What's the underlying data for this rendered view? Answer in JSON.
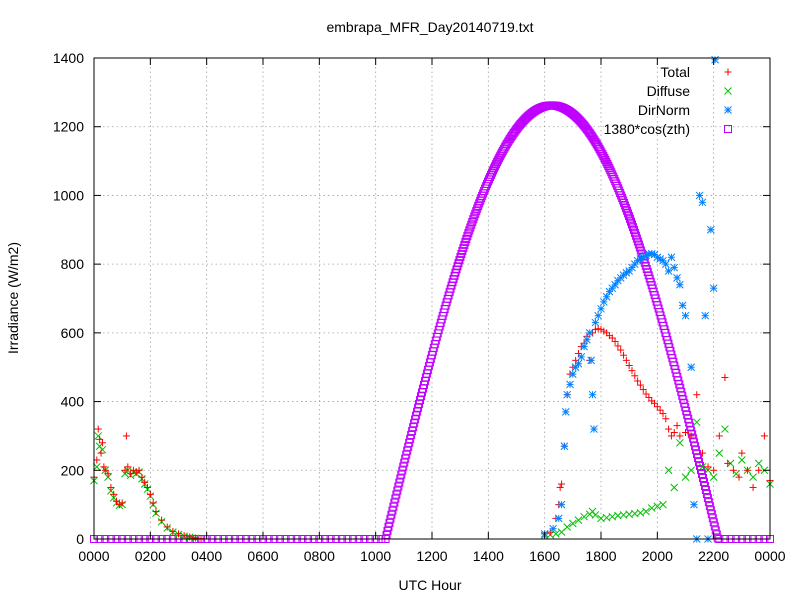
{
  "chart_data": {
    "type": "scatter",
    "title": "embrapa_MFR_Day20140719.txt",
    "xlabel": "UTC Hour",
    "ylabel": "Irradiance (W/m2)",
    "xlim": [
      0,
      24
    ],
    "ylim": [
      0,
      1400
    ],
    "grid": true,
    "legend_position": "top-right",
    "x_ticks": [
      {
        "value": 0,
        "label": "0000"
      },
      {
        "value": 2,
        "label": "0200"
      },
      {
        "value": 4,
        "label": "0400"
      },
      {
        "value": 6,
        "label": "0600"
      },
      {
        "value": 8,
        "label": "0800"
      },
      {
        "value": 10,
        "label": "1000"
      },
      {
        "value": 12,
        "label": "1200"
      },
      {
        "value": 14,
        "label": "1400"
      },
      {
        "value": 16,
        "label": "1600"
      },
      {
        "value": 18,
        "label": "1800"
      },
      {
        "value": 20,
        "label": "2000"
      },
      {
        "value": 22,
        "label": "2200"
      },
      {
        "value": 24,
        "label": "0000"
      }
    ],
    "y_ticks": [
      0,
      200,
      400,
      600,
      800,
      1000,
      1200,
      1400
    ],
    "series": [
      {
        "name": "Total",
        "color": "#ff0000",
        "marker": "plus",
        "points": [
          [
            0.0,
            180
          ],
          [
            0.1,
            230
          ],
          [
            0.15,
            320
          ],
          [
            0.2,
            290
          ],
          [
            0.25,
            250
          ],
          [
            0.3,
            280
          ],
          [
            0.35,
            210
          ],
          [
            0.4,
            200
          ],
          [
            0.5,
            190
          ],
          [
            0.6,
            150
          ],
          [
            0.7,
            130
          ],
          [
            0.8,
            110
          ],
          [
            0.9,
            100
          ],
          [
            1.0,
            105
          ],
          [
            1.1,
            200
          ],
          [
            1.15,
            300
          ],
          [
            1.2,
            210
          ],
          [
            1.3,
            190
          ],
          [
            1.4,
            200
          ],
          [
            1.5,
            195
          ],
          [
            1.6,
            200
          ],
          [
            1.7,
            180
          ],
          [
            1.8,
            165
          ],
          [
            1.9,
            150
          ],
          [
            2.0,
            130
          ],
          [
            2.1,
            105
          ],
          [
            2.2,
            80
          ],
          [
            2.4,
            55
          ],
          [
            2.6,
            35
          ],
          [
            2.8,
            22
          ],
          [
            3.0,
            15
          ],
          [
            3.2,
            10
          ],
          [
            3.4,
            6
          ],
          [
            3.6,
            3
          ],
          [
            3.8,
            1
          ],
          [
            16.0,
            15
          ],
          [
            16.2,
            20
          ],
          [
            16.4,
            60
          ],
          [
            16.5,
            100
          ],
          [
            16.55,
            150
          ],
          [
            16.6,
            160
          ],
          [
            16.7,
            270
          ],
          [
            16.8,
            420
          ],
          [
            16.9,
            480
          ],
          [
            17.0,
            500
          ],
          [
            17.1,
            520
          ],
          [
            17.2,
            540
          ],
          [
            17.3,
            560
          ],
          [
            17.4,
            570
          ],
          [
            17.5,
            590
          ],
          [
            17.6,
            520
          ],
          [
            17.7,
            600
          ],
          [
            17.8,
            610
          ],
          [
            17.9,
            612
          ],
          [
            18.0,
            610
          ],
          [
            18.1,
            605
          ],
          [
            18.2,
            600
          ],
          [
            18.3,
            592
          ],
          [
            18.4,
            585
          ],
          [
            18.5,
            575
          ],
          [
            18.6,
            562
          ],
          [
            18.7,
            550
          ],
          [
            18.8,
            535
          ],
          [
            18.9,
            520
          ],
          [
            19.0,
            505
          ],
          [
            19.1,
            490
          ],
          [
            19.2,
            475
          ],
          [
            19.3,
            460
          ],
          [
            19.4,
            448
          ],
          [
            19.5,
            435
          ],
          [
            19.6,
            422
          ],
          [
            19.7,
            412
          ],
          [
            19.8,
            402
          ],
          [
            19.9,
            395
          ],
          [
            20.0,
            385
          ],
          [
            20.1,
            375
          ],
          [
            20.2,
            365
          ],
          [
            20.3,
            350
          ],
          [
            20.4,
            320
          ],
          [
            20.5,
            300
          ],
          [
            20.6,
            310
          ],
          [
            20.7,
            330
          ],
          [
            20.8,
            300
          ],
          [
            21.0,
            310
          ],
          [
            21.2,
            300
          ],
          [
            21.4,
            420
          ],
          [
            21.6,
            250
          ],
          [
            21.8,
            210
          ],
          [
            22.0,
            200
          ],
          [
            22.2,
            300
          ],
          [
            22.4,
            470
          ],
          [
            22.5,
            220
          ],
          [
            22.7,
            200
          ],
          [
            22.9,
            180
          ],
          [
            23.0,
            250
          ],
          [
            23.2,
            200
          ],
          [
            23.4,
            150
          ],
          [
            23.6,
            200
          ],
          [
            23.8,
            300
          ],
          [
            24.0,
            170
          ]
        ]
      },
      {
        "name": "Diffuse",
        "color": "#00c000",
        "marker": "cross",
        "points": [
          [
            0.0,
            170
          ],
          [
            0.1,
            210
          ],
          [
            0.15,
            300
          ],
          [
            0.2,
            270
          ],
          [
            0.3,
            260
          ],
          [
            0.4,
            200
          ],
          [
            0.5,
            180
          ],
          [
            0.6,
            140
          ],
          [
            0.7,
            120
          ],
          [
            0.8,
            105
          ],
          [
            0.9,
            98
          ],
          [
            1.0,
            100
          ],
          [
            1.1,
            190
          ],
          [
            1.2,
            200
          ],
          [
            1.3,
            185
          ],
          [
            1.4,
            195
          ],
          [
            1.5,
            190
          ],
          [
            1.6,
            195
          ],
          [
            1.7,
            175
          ],
          [
            1.8,
            160
          ],
          [
            1.9,
            145
          ],
          [
            2.0,
            125
          ],
          [
            2.1,
            100
          ],
          [
            2.2,
            75
          ],
          [
            2.4,
            50
          ],
          [
            2.6,
            32
          ],
          [
            2.8,
            20
          ],
          [
            3.0,
            13
          ],
          [
            3.2,
            8
          ],
          [
            3.4,
            5
          ],
          [
            3.6,
            2
          ],
          [
            16.0,
            10
          ],
          [
            16.2,
            12
          ],
          [
            16.4,
            15
          ],
          [
            16.6,
            20
          ],
          [
            16.8,
            35
          ],
          [
            17.0,
            45
          ],
          [
            17.2,
            55
          ],
          [
            17.4,
            65
          ],
          [
            17.6,
            72
          ],
          [
            17.7,
            80
          ],
          [
            17.8,
            70
          ],
          [
            18.0,
            60
          ],
          [
            18.2,
            62
          ],
          [
            18.4,
            65
          ],
          [
            18.6,
            68
          ],
          [
            18.8,
            70
          ],
          [
            19.0,
            72
          ],
          [
            19.2,
            74
          ],
          [
            19.4,
            76
          ],
          [
            19.6,
            80
          ],
          [
            19.8,
            90
          ],
          [
            20.0,
            95
          ],
          [
            20.2,
            100
          ],
          [
            20.4,
            200
          ],
          [
            20.6,
            150
          ],
          [
            20.8,
            280
          ],
          [
            21.0,
            180
          ],
          [
            21.2,
            200
          ],
          [
            21.4,
            340
          ],
          [
            21.6,
            210
          ],
          [
            21.8,
            200
          ],
          [
            22.0,
            180
          ],
          [
            22.2,
            250
          ],
          [
            22.4,
            320
          ],
          [
            22.6,
            220
          ],
          [
            22.8,
            190
          ],
          [
            23.0,
            230
          ],
          [
            23.2,
            200
          ],
          [
            23.4,
            180
          ],
          [
            23.6,
            220
          ],
          [
            23.8,
            200
          ],
          [
            24.0,
            160
          ]
        ]
      },
      {
        "name": "DirNorm",
        "color": "#0080ff",
        "marker": "star",
        "points": [
          [
            16.0,
            15
          ],
          [
            16.3,
            30
          ],
          [
            16.5,
            60
          ],
          [
            16.6,
            100
          ],
          [
            16.7,
            270
          ],
          [
            16.75,
            370
          ],
          [
            16.8,
            420
          ],
          [
            16.9,
            450
          ],
          [
            17.0,
            480
          ],
          [
            17.1,
            500
          ],
          [
            17.2,
            510
          ],
          [
            17.3,
            530
          ],
          [
            17.4,
            560
          ],
          [
            17.5,
            580
          ],
          [
            17.6,
            600
          ],
          [
            17.65,
            520
          ],
          [
            17.7,
            420
          ],
          [
            17.75,
            320
          ],
          [
            17.8,
            630
          ],
          [
            17.9,
            650
          ],
          [
            18.0,
            670
          ],
          [
            18.1,
            690
          ],
          [
            18.2,
            705
          ],
          [
            18.3,
            720
          ],
          [
            18.4,
            730
          ],
          [
            18.5,
            740
          ],
          [
            18.6,
            752
          ],
          [
            18.7,
            760
          ],
          [
            18.8,
            768
          ],
          [
            18.9,
            775
          ],
          [
            19.0,
            780
          ],
          [
            19.1,
            790
          ],
          [
            19.2,
            800
          ],
          [
            19.3,
            810
          ],
          [
            19.4,
            815
          ],
          [
            19.5,
            820
          ],
          [
            19.6,
            825
          ],
          [
            19.7,
            830
          ],
          [
            19.8,
            830
          ],
          [
            19.9,
            828
          ],
          [
            20.0,
            820
          ],
          [
            20.1,
            815
          ],
          [
            20.2,
            810
          ],
          [
            20.3,
            800
          ],
          [
            20.4,
            780
          ],
          [
            20.5,
            820
          ],
          [
            20.6,
            790
          ],
          [
            20.7,
            760
          ],
          [
            20.8,
            740
          ],
          [
            20.9,
            680
          ],
          [
            21.0,
            650
          ],
          [
            21.2,
            500
          ],
          [
            21.3,
            100
          ],
          [
            21.4,
            0
          ],
          [
            21.5,
            1000
          ],
          [
            21.6,
            980
          ],
          [
            21.7,
            650
          ],
          [
            21.8,
            0
          ],
          [
            21.9,
            900
          ],
          [
            22.0,
            730
          ],
          [
            22.05,
            1395
          ]
        ]
      },
      {
        "name": "1380*cos(zth)",
        "color": "#c000ff",
        "marker": "square",
        "night_points": [
          [
            0.0,
            0
          ],
          [
            0.2,
            0
          ],
          [
            0.4,
            0
          ],
          [
            0.6,
            0
          ],
          [
            0.8,
            0
          ],
          [
            1.0,
            0
          ],
          [
            1.2,
            0
          ],
          [
            1.4,
            0
          ],
          [
            1.6,
            0
          ],
          [
            1.8,
            0
          ],
          [
            2.0,
            0
          ],
          [
            2.2,
            0
          ],
          [
            2.4,
            0
          ],
          [
            2.6,
            0
          ],
          [
            2.8,
            0
          ],
          [
            3.0,
            0
          ],
          [
            3.2,
            0
          ],
          [
            3.4,
            0
          ],
          [
            3.6,
            0
          ],
          [
            3.8,
            0
          ],
          [
            4.0,
            0
          ],
          [
            4.2,
            0
          ],
          [
            4.4,
            0
          ],
          [
            4.6,
            0
          ],
          [
            4.8,
            0
          ],
          [
            5.0,
            0
          ],
          [
            5.2,
            0
          ],
          [
            5.4,
            0
          ],
          [
            5.6,
            0
          ],
          [
            5.8,
            0
          ],
          [
            6.0,
            0
          ],
          [
            6.2,
            0
          ],
          [
            6.4,
            0
          ],
          [
            6.6,
            0
          ],
          [
            6.8,
            0
          ],
          [
            7.0,
            0
          ],
          [
            7.2,
            0
          ],
          [
            7.4,
            0
          ],
          [
            7.6,
            0
          ],
          [
            7.8,
            0
          ],
          [
            8.0,
            0
          ],
          [
            8.2,
            0
          ],
          [
            8.4,
            0
          ],
          [
            8.6,
            0
          ],
          [
            8.8,
            0
          ],
          [
            9.0,
            0
          ],
          [
            9.2,
            0
          ],
          [
            9.4,
            0
          ],
          [
            9.6,
            0
          ],
          [
            9.8,
            0
          ],
          [
            10.0,
            0
          ],
          [
            10.2,
            0
          ],
          [
            22.2,
            0
          ],
          [
            22.4,
            0
          ],
          [
            22.6,
            0
          ],
          [
            22.8,
            0
          ],
          [
            23.0,
            0
          ],
          [
            23.2,
            0
          ],
          [
            23.4,
            0
          ],
          [
            23.6,
            0
          ],
          [
            23.8,
            0
          ],
          [
            24.0,
            0
          ]
        ],
        "day_curve": {
          "peak_hour": 16.25,
          "half_width_hours": 5.9,
          "peak_value": 1262
        }
      }
    ]
  }
}
